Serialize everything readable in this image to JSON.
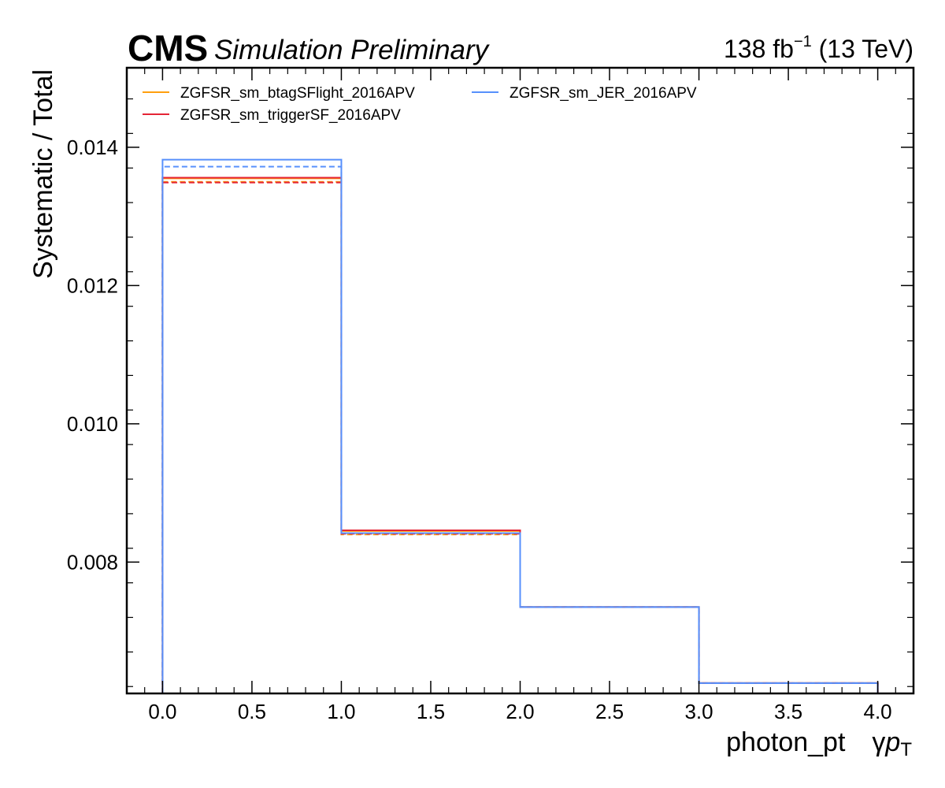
{
  "header": {
    "experiment": "CMS",
    "status": "Simulation Preliminary",
    "lumi_value": "138 fb",
    "lumi_exp": "−1",
    "energy": "(13 TeV)"
  },
  "chart_data": {
    "type": "line",
    "drawstyle": "steps",
    "xlabel": "photon_pt",
    "xlabel_symbol_gamma": "γ",
    "xlabel_symbol_p": "p",
    "xlabel_symbol_sub": "T",
    "ylabel": "Systematic / Total",
    "xlim": [
      -0.2,
      4.2
    ],
    "ylim": [
      0.0061,
      0.01515
    ],
    "x_ticks": [
      0.0,
      0.5,
      1.0,
      1.5,
      2.0,
      2.5,
      3.0,
      3.5,
      4.0
    ],
    "x_tick_labels": [
      "0.0",
      "0.5",
      "1.0",
      "1.5",
      "2.0",
      "2.5",
      "3.0",
      "3.5",
      "4.0"
    ],
    "y_ticks": [
      0.008,
      0.01,
      0.012,
      0.014
    ],
    "y_tick_labels": [
      "0.008",
      "0.010",
      "0.012",
      "0.014"
    ],
    "bin_edges": [
      0,
      1,
      2,
      3,
      4
    ],
    "grid": false,
    "legend_position": "top-left",
    "legend_columns": 2,
    "series": [
      {
        "name": "ZGFSR_sm_btagSFlight_2016APV",
        "color": "#ff9f0e",
        "up": [
          0.01355,
          0.00845,
          0.00735,
          0.00625
        ],
        "down": [
          0.0135,
          0.0084,
          0.00735,
          0.00625
        ]
      },
      {
        "name": "ZGFSR_sm_triggerSF_2016APV",
        "color": "#e42536",
        "up": [
          0.01356,
          0.00846,
          0.00735,
          0.00625
        ],
        "down": [
          0.01349,
          0.00841,
          0.00735,
          0.00625
        ]
      },
      {
        "name": "ZGFSR_sm_JER_2016APV",
        "color": "#5790fc",
        "up": [
          0.01382,
          0.00842,
          0.00735,
          0.00625
        ],
        "down": [
          0.01372,
          0.00842,
          0.00735,
          0.00625
        ]
      }
    ]
  }
}
